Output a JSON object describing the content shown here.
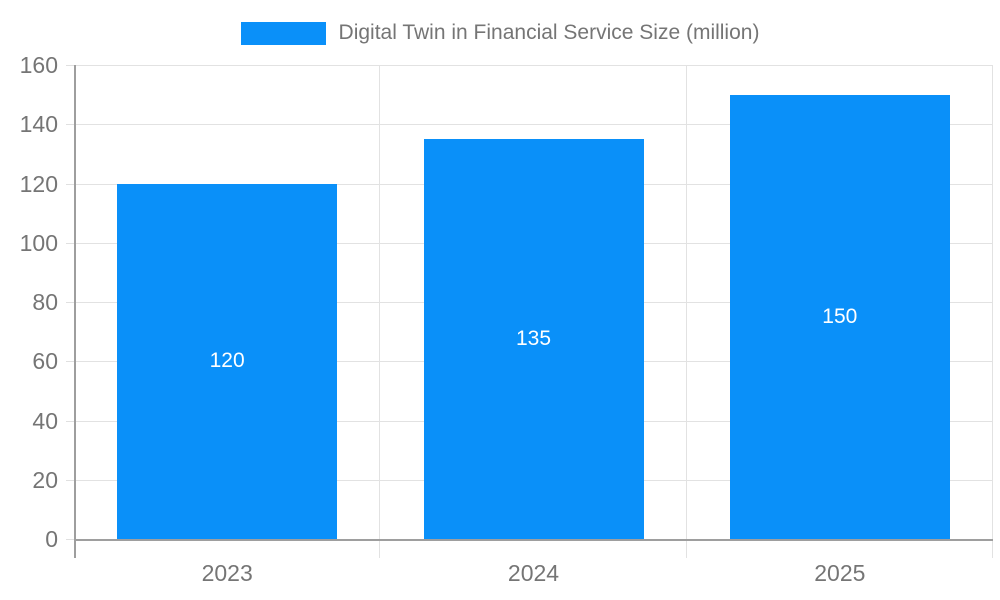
{
  "legend": {
    "label": "Digital Twin in Financial Service Size (million)"
  },
  "chart_data": {
    "type": "bar",
    "title": "Digital Twin in Financial Service Size (million)",
    "xlabel": "",
    "ylabel": "",
    "categories": [
      "2023",
      "2024",
      "2025"
    ],
    "values": [
      120,
      135,
      150
    ],
    "bar_labels": [
      "120",
      "135",
      "150"
    ],
    "ylim": [
      0,
      160
    ],
    "yticks": [
      0,
      20,
      40,
      60,
      80,
      100,
      120,
      140,
      160
    ],
    "grid": true,
    "legend_position": "top",
    "colors": {
      "bar": "#0a90f9",
      "bar_label": "#ffffff",
      "axis_line": "#9e9e9e",
      "grid_line": "#e2e2e2",
      "tick_mark": "#e0e0e0",
      "tick_label": "#757575",
      "legend_text": "#757575",
      "background": "#ffffff"
    }
  }
}
